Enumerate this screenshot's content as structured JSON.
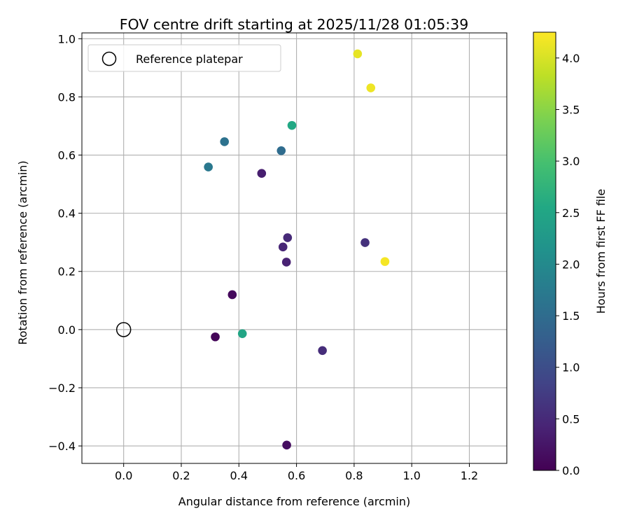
{
  "chart_data": {
    "type": "scatter",
    "title": "FOV centre drift starting at 2025/11/28 01:05:39",
    "xlabel": "Angular distance from reference (arcmin)",
    "ylabel": "Rotation from reference (arcmin)",
    "xlim": [
      -0.145,
      1.33
    ],
    "ylim": [
      -0.46,
      1.02
    ],
    "xticks": [
      0.0,
      0.2,
      0.4,
      0.6,
      0.8,
      1.0,
      1.2
    ],
    "xtick_labels": [
      "0.0",
      "0.2",
      "0.4",
      "0.6",
      "0.8",
      "1.0",
      "1.2"
    ],
    "yticks": [
      -0.4,
      -0.2,
      0.0,
      0.2,
      0.4,
      0.6,
      0.8,
      1.0
    ],
    "ytick_labels": [
      "−0.4",
      "−0.2",
      "0.0",
      "0.2",
      "0.4",
      "0.6",
      "0.8",
      "1.0"
    ],
    "grid": true,
    "legend": {
      "location": "upper-left",
      "entries": [
        "Reference platepar"
      ]
    },
    "reference_point": {
      "x": 0.0,
      "y": 0.0,
      "label": "Reference platepar"
    },
    "colorbar": {
      "label": "Hours from first FF file",
      "colormap": "viridis",
      "range": [
        0.0,
        4.25
      ],
      "ticks": [
        0.0,
        0.5,
        1.0,
        1.5,
        2.0,
        2.5,
        3.0,
        3.5,
        4.0
      ],
      "tick_labels": [
        "0.0",
        "0.5",
        "1.0",
        "1.5",
        "2.0",
        "2.5",
        "3.0",
        "3.5",
        "4.0"
      ]
    },
    "points": [
      {
        "x": 0.318,
        "y": -0.025,
        "hours": 0.05
      },
      {
        "x": 0.377,
        "y": 0.12,
        "hours": 0.1
      },
      {
        "x": 0.566,
        "y": -0.397,
        "hours": 0.15
      },
      {
        "x": 0.479,
        "y": 0.537,
        "hours": 0.35
      },
      {
        "x": 0.565,
        "y": 0.232,
        "hours": 0.4
      },
      {
        "x": 0.553,
        "y": 0.284,
        "hours": 0.45
      },
      {
        "x": 0.569,
        "y": 0.316,
        "hours": 0.5
      },
      {
        "x": 0.69,
        "y": -0.072,
        "hours": 0.55
      },
      {
        "x": 0.838,
        "y": 0.299,
        "hours": 0.6
      },
      {
        "x": 0.547,
        "y": 0.615,
        "hours": 1.5
      },
      {
        "x": 0.35,
        "y": 0.646,
        "hours": 1.6
      },
      {
        "x": 0.294,
        "y": 0.559,
        "hours": 1.7
      },
      {
        "x": 0.412,
        "y": -0.014,
        "hours": 2.5
      },
      {
        "x": 0.584,
        "y": 0.702,
        "hours": 2.55
      },
      {
        "x": 0.812,
        "y": 0.948,
        "hours": 4.1
      },
      {
        "x": 0.858,
        "y": 0.831,
        "hours": 4.15
      },
      {
        "x": 0.907,
        "y": 0.234,
        "hours": 4.2
      }
    ]
  }
}
